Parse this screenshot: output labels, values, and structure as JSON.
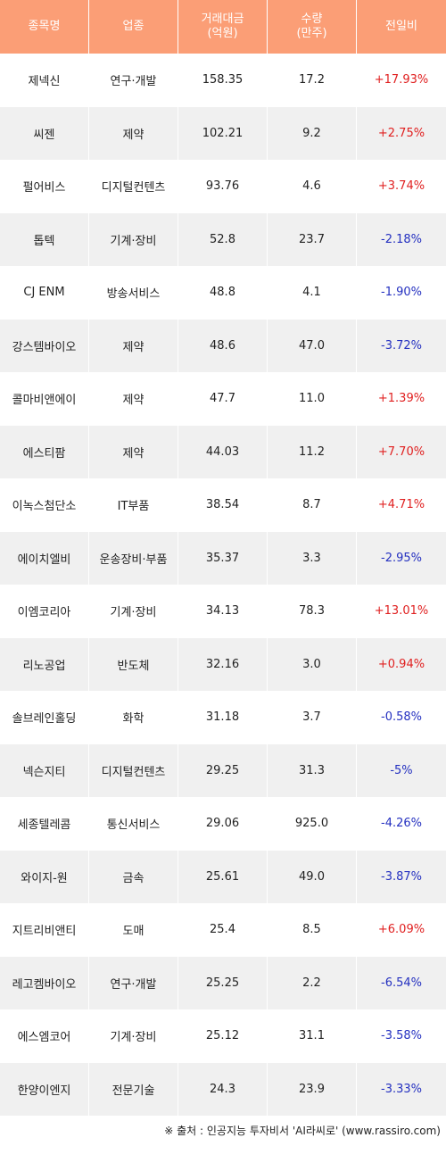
{
  "headers": {
    "name": "종목명",
    "sector": "업종",
    "trade_amount": "거래대금\n(억원)",
    "volume": "수량\n(만주)",
    "change": "전일비"
  },
  "colors": {
    "header_bg": "#fb9e76",
    "up": "#e02020",
    "down": "#2430c0",
    "stripe": "#f0f0f0"
  },
  "rows": [
    {
      "name": "제넥신",
      "sector": "연구·개발",
      "amount": "158.35",
      "volume": "17.2",
      "change": "+17.93%",
      "dir": "up"
    },
    {
      "name": "씨젠",
      "sector": "제약",
      "amount": "102.21",
      "volume": "9.2",
      "change": "+2.75%",
      "dir": "up"
    },
    {
      "name": "펄어비스",
      "sector": "디지털컨텐츠",
      "amount": "93.76",
      "volume": "4.6",
      "change": "+3.74%",
      "dir": "up"
    },
    {
      "name": "톱텍",
      "sector": "기계·장비",
      "amount": "52.8",
      "volume": "23.7",
      "change": "-2.18%",
      "dir": "down"
    },
    {
      "name": "CJ ENM",
      "sector": "방송서비스",
      "amount": "48.8",
      "volume": "4.1",
      "change": "-1.90%",
      "dir": "down"
    },
    {
      "name": "강스템바이오",
      "sector": "제약",
      "amount": "48.6",
      "volume": "47.0",
      "change": "-3.72%",
      "dir": "down"
    },
    {
      "name": "콜마비앤에이",
      "sector": "제약",
      "amount": "47.7",
      "volume": "11.0",
      "change": "+1.39%",
      "dir": "up"
    },
    {
      "name": "에스티팜",
      "sector": "제약",
      "amount": "44.03",
      "volume": "11.2",
      "change": "+7.70%",
      "dir": "up"
    },
    {
      "name": "이녹스첨단소",
      "sector": "IT부품",
      "amount": "38.54",
      "volume": "8.7",
      "change": "+4.71%",
      "dir": "up"
    },
    {
      "name": "에이치엘비",
      "sector": "운송장비·부품",
      "amount": "35.37",
      "volume": "3.3",
      "change": "-2.95%",
      "dir": "down"
    },
    {
      "name": "이엠코리아",
      "sector": "기계·장비",
      "amount": "34.13",
      "volume": "78.3",
      "change": "+13.01%",
      "dir": "up"
    },
    {
      "name": "리노공업",
      "sector": "반도체",
      "amount": "32.16",
      "volume": "3.0",
      "change": "+0.94%",
      "dir": "up"
    },
    {
      "name": "솔브레인홀딩",
      "sector": "화학",
      "amount": "31.18",
      "volume": "3.7",
      "change": "-0.58%",
      "dir": "down"
    },
    {
      "name": "넥슨지티",
      "sector": "디지털컨텐츠",
      "amount": "29.25",
      "volume": "31.3",
      "change": "-5%",
      "dir": "down"
    },
    {
      "name": "세종텔레콤",
      "sector": "통신서비스",
      "amount": "29.06",
      "volume": "925.0",
      "change": "-4.26%",
      "dir": "down"
    },
    {
      "name": "와이지-원",
      "sector": "금속",
      "amount": "25.61",
      "volume": "49.0",
      "change": "-3.87%",
      "dir": "down"
    },
    {
      "name": "지트리비앤티",
      "sector": "도매",
      "amount": "25.4",
      "volume": "8.5",
      "change": "+6.09%",
      "dir": "up"
    },
    {
      "name": "레고켐바이오",
      "sector": "연구·개발",
      "amount": "25.25",
      "volume": "2.2",
      "change": "-6.54%",
      "dir": "down"
    },
    {
      "name": "에스엠코어",
      "sector": "기계·장비",
      "amount": "25.12",
      "volume": "31.1",
      "change": "-3.58%",
      "dir": "down"
    },
    {
      "name": "한양이엔지",
      "sector": "전문기술",
      "amount": "24.3",
      "volume": "23.9",
      "change": "-3.33%",
      "dir": "down"
    }
  ],
  "footer": "※ 출처 : 인공지능 투자비서 'AI라씨로' (www.rassiro.com)"
}
